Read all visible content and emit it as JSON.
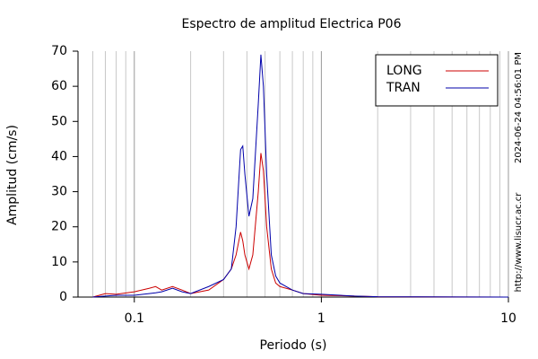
{
  "chart_data": {
    "type": "line",
    "title": "Espectro de amplitud Electrica P06",
    "x_label": "Periodo (s)",
    "y_label": "Amplitud (cm/s)",
    "annotations": [
      "2024-06-24 04:56:01 PM",
      "http://www.lisucr.ac.cr"
    ],
    "x": [
      0.06,
      0.07,
      0.08,
      0.1,
      0.12,
      0.13,
      0.14,
      0.16,
      0.18,
      0.2,
      0.25,
      0.3,
      0.33,
      0.35,
      0.37,
      0.38,
      0.39,
      0.41,
      0.43,
      0.46,
      0.475,
      0.49,
      0.51,
      0.54,
      0.57,
      0.6,
      0.7,
      0.8,
      1,
      1.5,
      2,
      10
    ],
    "series": [
      {
        "name": "LONG",
        "color": "#cc0000",
        "values": [
          0,
          1,
          0.8,
          1.5,
          2.5,
          3,
          2,
          3,
          2,
          1,
          2,
          5,
          8,
          12,
          18.5,
          16,
          12,
          8,
          12,
          30,
          41,
          36,
          20,
          8,
          4,
          3,
          2,
          1,
          0.5,
          0.3,
          0.1,
          0
        ]
      },
      {
        "name": "TRAN",
        "color": "#0000aa",
        "values": [
          0,
          0.3,
          0.5,
          0.5,
          1,
          1.2,
          1.5,
          2.5,
          1.5,
          1,
          3,
          5,
          8,
          20,
          42,
          43,
          35,
          23,
          28,
          55,
          69,
          60,
          35,
          12,
          6,
          4,
          2,
          1,
          0.8,
          0.3,
          0.1,
          0
        ]
      }
    ],
    "xlim": [
      0.05,
      10
    ],
    "xticks": [
      0.1,
      1,
      10
    ],
    "x_log": true,
    "ylim": [
      0,
      70
    ],
    "yticks": [
      0,
      10,
      20,
      30,
      40,
      50,
      60,
      70
    ],
    "grid": "x",
    "legend": "upper right"
  }
}
